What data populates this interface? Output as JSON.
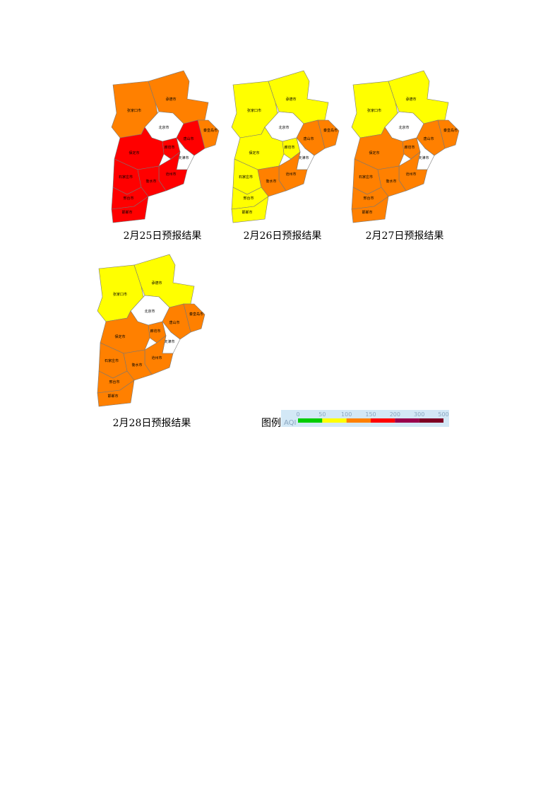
{
  "maps": [
    {
      "caption": "2月25日预报结果",
      "regions": [
        {
          "name": "张家口市",
          "color": "#ff8000"
        },
        {
          "name": "承德市",
          "color": "#ff8000"
        },
        {
          "name": "北京市",
          "color": "#ffffff"
        },
        {
          "name": "秦皇岛市",
          "color": "#ff8000"
        },
        {
          "name": "唐山市",
          "color": "#ff0000"
        },
        {
          "name": "廊坊市",
          "color": "#ff0000"
        },
        {
          "name": "天津市",
          "color": "#ffffff"
        },
        {
          "name": "保定市",
          "color": "#ff0000"
        },
        {
          "name": "沧州市",
          "color": "#ff0000"
        },
        {
          "name": "石家庄市",
          "color": "#ff0000"
        },
        {
          "name": "衡水市",
          "color": "#ff0000"
        },
        {
          "name": "邢台市",
          "color": "#ff0000"
        },
        {
          "name": "邯郸市",
          "color": "#ff0000"
        }
      ]
    },
    {
      "caption": "2月26日预报结果",
      "regions": [
        {
          "name": "张家口市",
          "color": "#ffff00"
        },
        {
          "name": "承德市",
          "color": "#ffff00"
        },
        {
          "name": "北京市",
          "color": "#ffffff"
        },
        {
          "name": "秦皇岛市",
          "color": "#ff8000"
        },
        {
          "name": "唐山市",
          "color": "#ff8000"
        },
        {
          "name": "廊坊市",
          "color": "#ffff00"
        },
        {
          "name": "天津市",
          "color": "#ffffff"
        },
        {
          "name": "保定市",
          "color": "#ffff00"
        },
        {
          "name": "沧州市",
          "color": "#ff8000"
        },
        {
          "name": "石家庄市",
          "color": "#ffff00"
        },
        {
          "name": "衡水市",
          "color": "#ff8000"
        },
        {
          "name": "邢台市",
          "color": "#ffff00"
        },
        {
          "name": "邯郸市",
          "color": "#ffff00"
        }
      ]
    },
    {
      "caption": "2月27日预报结果",
      "regions": [
        {
          "name": "张家口市",
          "color": "#ffff00"
        },
        {
          "name": "承德市",
          "color": "#ffff00"
        },
        {
          "name": "北京市",
          "color": "#ffffff"
        },
        {
          "name": "秦皇岛市",
          "color": "#ff8000"
        },
        {
          "name": "唐山市",
          "color": "#ff8000"
        },
        {
          "name": "廊坊市",
          "color": "#ff8000"
        },
        {
          "name": "天津市",
          "color": "#ffffff"
        },
        {
          "name": "保定市",
          "color": "#ff8000"
        },
        {
          "name": "沧州市",
          "color": "#ff8000"
        },
        {
          "name": "石家庄市",
          "color": "#ff8000"
        },
        {
          "name": "衡水市",
          "color": "#ff8000"
        },
        {
          "name": "邢台市",
          "color": "#ff8000"
        },
        {
          "name": "邯郸市",
          "color": "#ff8000"
        }
      ]
    },
    {
      "caption": "2月28日预报结果",
      "regions": [
        {
          "name": "张家口市",
          "color": "#ffff00"
        },
        {
          "name": "承德市",
          "color": "#ffff00"
        },
        {
          "name": "北京市",
          "color": "#ffffff"
        },
        {
          "name": "秦皇岛市",
          "color": "#ff8000"
        },
        {
          "name": "唐山市",
          "color": "#ff8000"
        },
        {
          "name": "廊坊市",
          "color": "#ff8000"
        },
        {
          "name": "天津市",
          "color": "#ffffff"
        },
        {
          "name": "保定市",
          "color": "#ff8000"
        },
        {
          "name": "沧州市",
          "color": "#ff8000"
        },
        {
          "name": "石家庄市",
          "color": "#ff8000"
        },
        {
          "name": "衡水市",
          "color": "#ff8000"
        },
        {
          "name": "邢台市",
          "color": "#ff8000"
        },
        {
          "name": "邯郸市",
          "color": "#ff8000"
        }
      ]
    }
  ],
  "legend": {
    "title": "图例",
    "label": "AQI",
    "breaks": [
      0,
      50,
      100,
      150,
      200,
      300,
      500
    ],
    "colors": [
      "#00cc00",
      "#ffff00",
      "#ff8000",
      "#ff0000",
      "#99004c",
      "#7e0023"
    ]
  }
}
